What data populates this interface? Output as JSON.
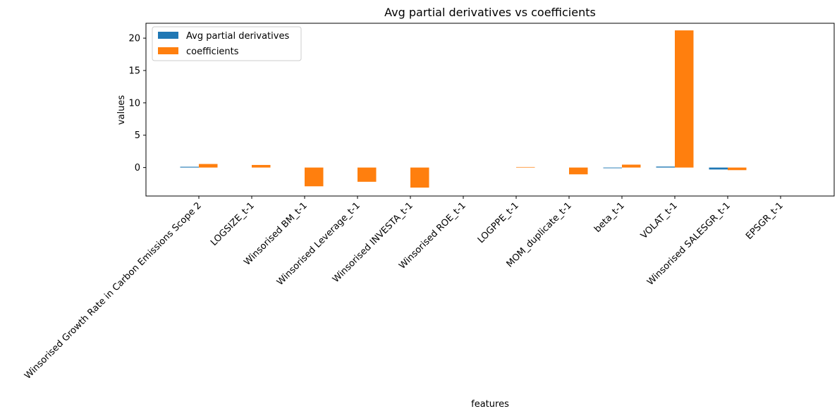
{
  "chart_data": {
    "type": "bar",
    "title": "Avg partial derivatives vs coefficients",
    "xlabel": "features",
    "ylabel": "values",
    "categories": [
      "Winsorised Growth Rate in Carbon Emissions Scope 2",
      "LOGSIZE_t-1",
      "Winsorised BM_t-1",
      "Winsorised Leverage_t-1",
      "Winsorised INVESTA_t-1",
      "Winsorised ROE_t-1",
      "LOGPPE_t-1",
      "MOM_duplicate_t-1",
      "beta_t-1",
      "VOLAT_t-1",
      "Winsorised SALESGR_t-1",
      "EPSGR_t-1"
    ],
    "series": [
      {
        "name": "Avg partial derivatives",
        "color": "#1f77b4",
        "values": [
          0.12,
          0.0,
          0.0,
          0.0,
          0.0,
          0.0,
          0.0,
          0.0,
          -0.1,
          0.15,
          -0.3,
          0.0
        ]
      },
      {
        "name": "coefficients",
        "color": "#ff7f0e",
        "values": [
          0.55,
          0.4,
          -2.9,
          -2.2,
          -3.1,
          0.0,
          0.08,
          -1.05,
          0.45,
          21.2,
          -0.4,
          0.0
        ]
      }
    ],
    "ylim": [
      -4.4,
      22.3
    ],
    "yticks": [
      0,
      5,
      10,
      15,
      20
    ],
    "grid": false,
    "legend_position": "upper-left"
  }
}
